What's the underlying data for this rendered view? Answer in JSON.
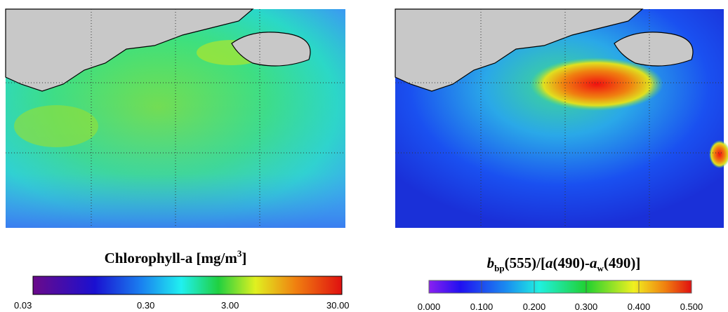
{
  "panels": [
    {
      "title_parts": [
        "Chlorophyll-a [mg/m",
        "3",
        "]"
      ],
      "colorbar_ticks": [
        "0.03",
        "0.30",
        "3.00",
        "30.00"
      ]
    },
    {
      "title_parts": [
        "b",
        "bp",
        "(555)/[",
        "a",
        "(490)-",
        "a",
        "w",
        "(490)]"
      ],
      "colorbar_ticks": [
        "0.000",
        "0.100",
        "0.200",
        "0.300",
        "0.400",
        "0.500"
      ]
    }
  ]
}
